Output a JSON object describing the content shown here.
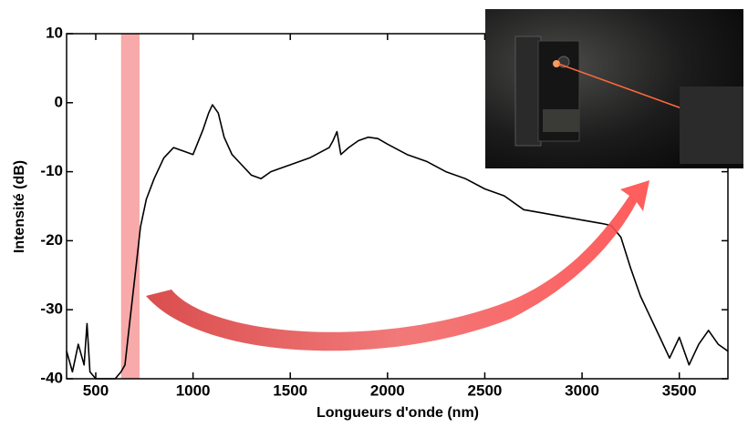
{
  "chart_data": {
    "type": "line",
    "x_label": "Longueurs d'onde (nm)",
    "y_label": "Intensité (dB)",
    "x": [
      350,
      380,
      410,
      440,
      455,
      470,
      500,
      550,
      600,
      630,
      650,
      670,
      690,
      710,
      730,
      760,
      800,
      850,
      900,
      950,
      1000,
      1050,
      1080,
      1100,
      1130,
      1160,
      1200,
      1250,
      1300,
      1350,
      1400,
      1450,
      1500,
      1600,
      1700,
      1720,
      1740,
      1760,
      1800,
      1850,
      1900,
      1950,
      2000,
      2100,
      2200,
      2300,
      2400,
      2500,
      2600,
      2700,
      2800,
      2900,
      3000,
      3100,
      3150,
      3200,
      3250,
      3300,
      3350,
      3400,
      3450,
      3500,
      3550,
      3600,
      3650,
      3700,
      3750
    ],
    "values": [
      -36,
      -39,
      -35,
      -38,
      -32,
      -39,
      -40,
      -40,
      -40,
      -39,
      -38,
      -33,
      -28,
      -23,
      -18,
      -14,
      -11,
      -8,
      -6.5,
      -7,
      -7.5,
      -4,
      -1.5,
      -0.3,
      -1.5,
      -5,
      -7.5,
      -9,
      -10.5,
      -11,
      -10,
      -9.5,
      -9,
      -8,
      -6.5,
      -5.5,
      -4.2,
      -7.5,
      -6.5,
      -5.5,
      -5,
      -5.2,
      -6,
      -7.5,
      -8.5,
      -10,
      -11,
      -12.5,
      -13.5,
      -15.5,
      -16,
      -16.5,
      -17,
      -17.5,
      -17.8,
      -19.5,
      -24,
      -28,
      -31,
      -34,
      -37,
      -34,
      -38,
      -35,
      -33,
      -35,
      -36
    ],
    "color": "#000000",
    "highlight_band": [
      630,
      725
    ],
    "highlight_color": "#f7a0a0",
    "xlim": [
      350,
      3750
    ],
    "ylim": [
      -40,
      10
    ],
    "xticks": [
      500,
      1000,
      1500,
      2000,
      2500,
      3000,
      3500
    ],
    "yticks": [
      -40,
      -30,
      -20,
      -10,
      0,
      10
    ],
    "grid": false
  }
}
